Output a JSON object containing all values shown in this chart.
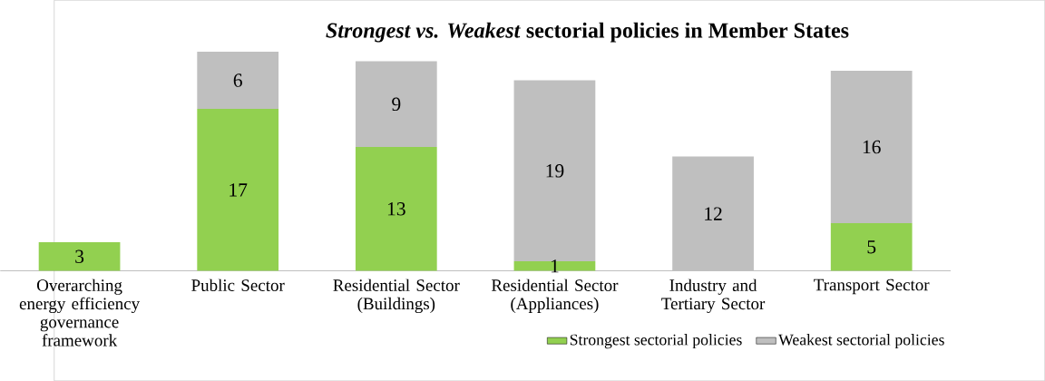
{
  "chart_data": {
    "type": "bar",
    "stacked": true,
    "title": "*Strongest vs. Weakest* sectorial policies in Member States",
    "categories": [
      "Overarching energy efficiency governance framework",
      "Public Sector",
      "Residential Sector (Buildings)",
      "Residential Sector (Appliances)",
      "Industry and Tertiary Sector",
      "Transport Sector"
    ],
    "series": [
      {
        "name": "Strongest sectorial policies",
        "color": "#92d050",
        "values": [
          3,
          17,
          13,
          1,
          null,
          5
        ]
      },
      {
        "name": "Weakest sectorial policies",
        "color": "#bfbfbf",
        "values": [
          null,
          6,
          9,
          19,
          12,
          16
        ]
      }
    ],
    "data_labels": true,
    "legend": "bottom right"
  }
}
